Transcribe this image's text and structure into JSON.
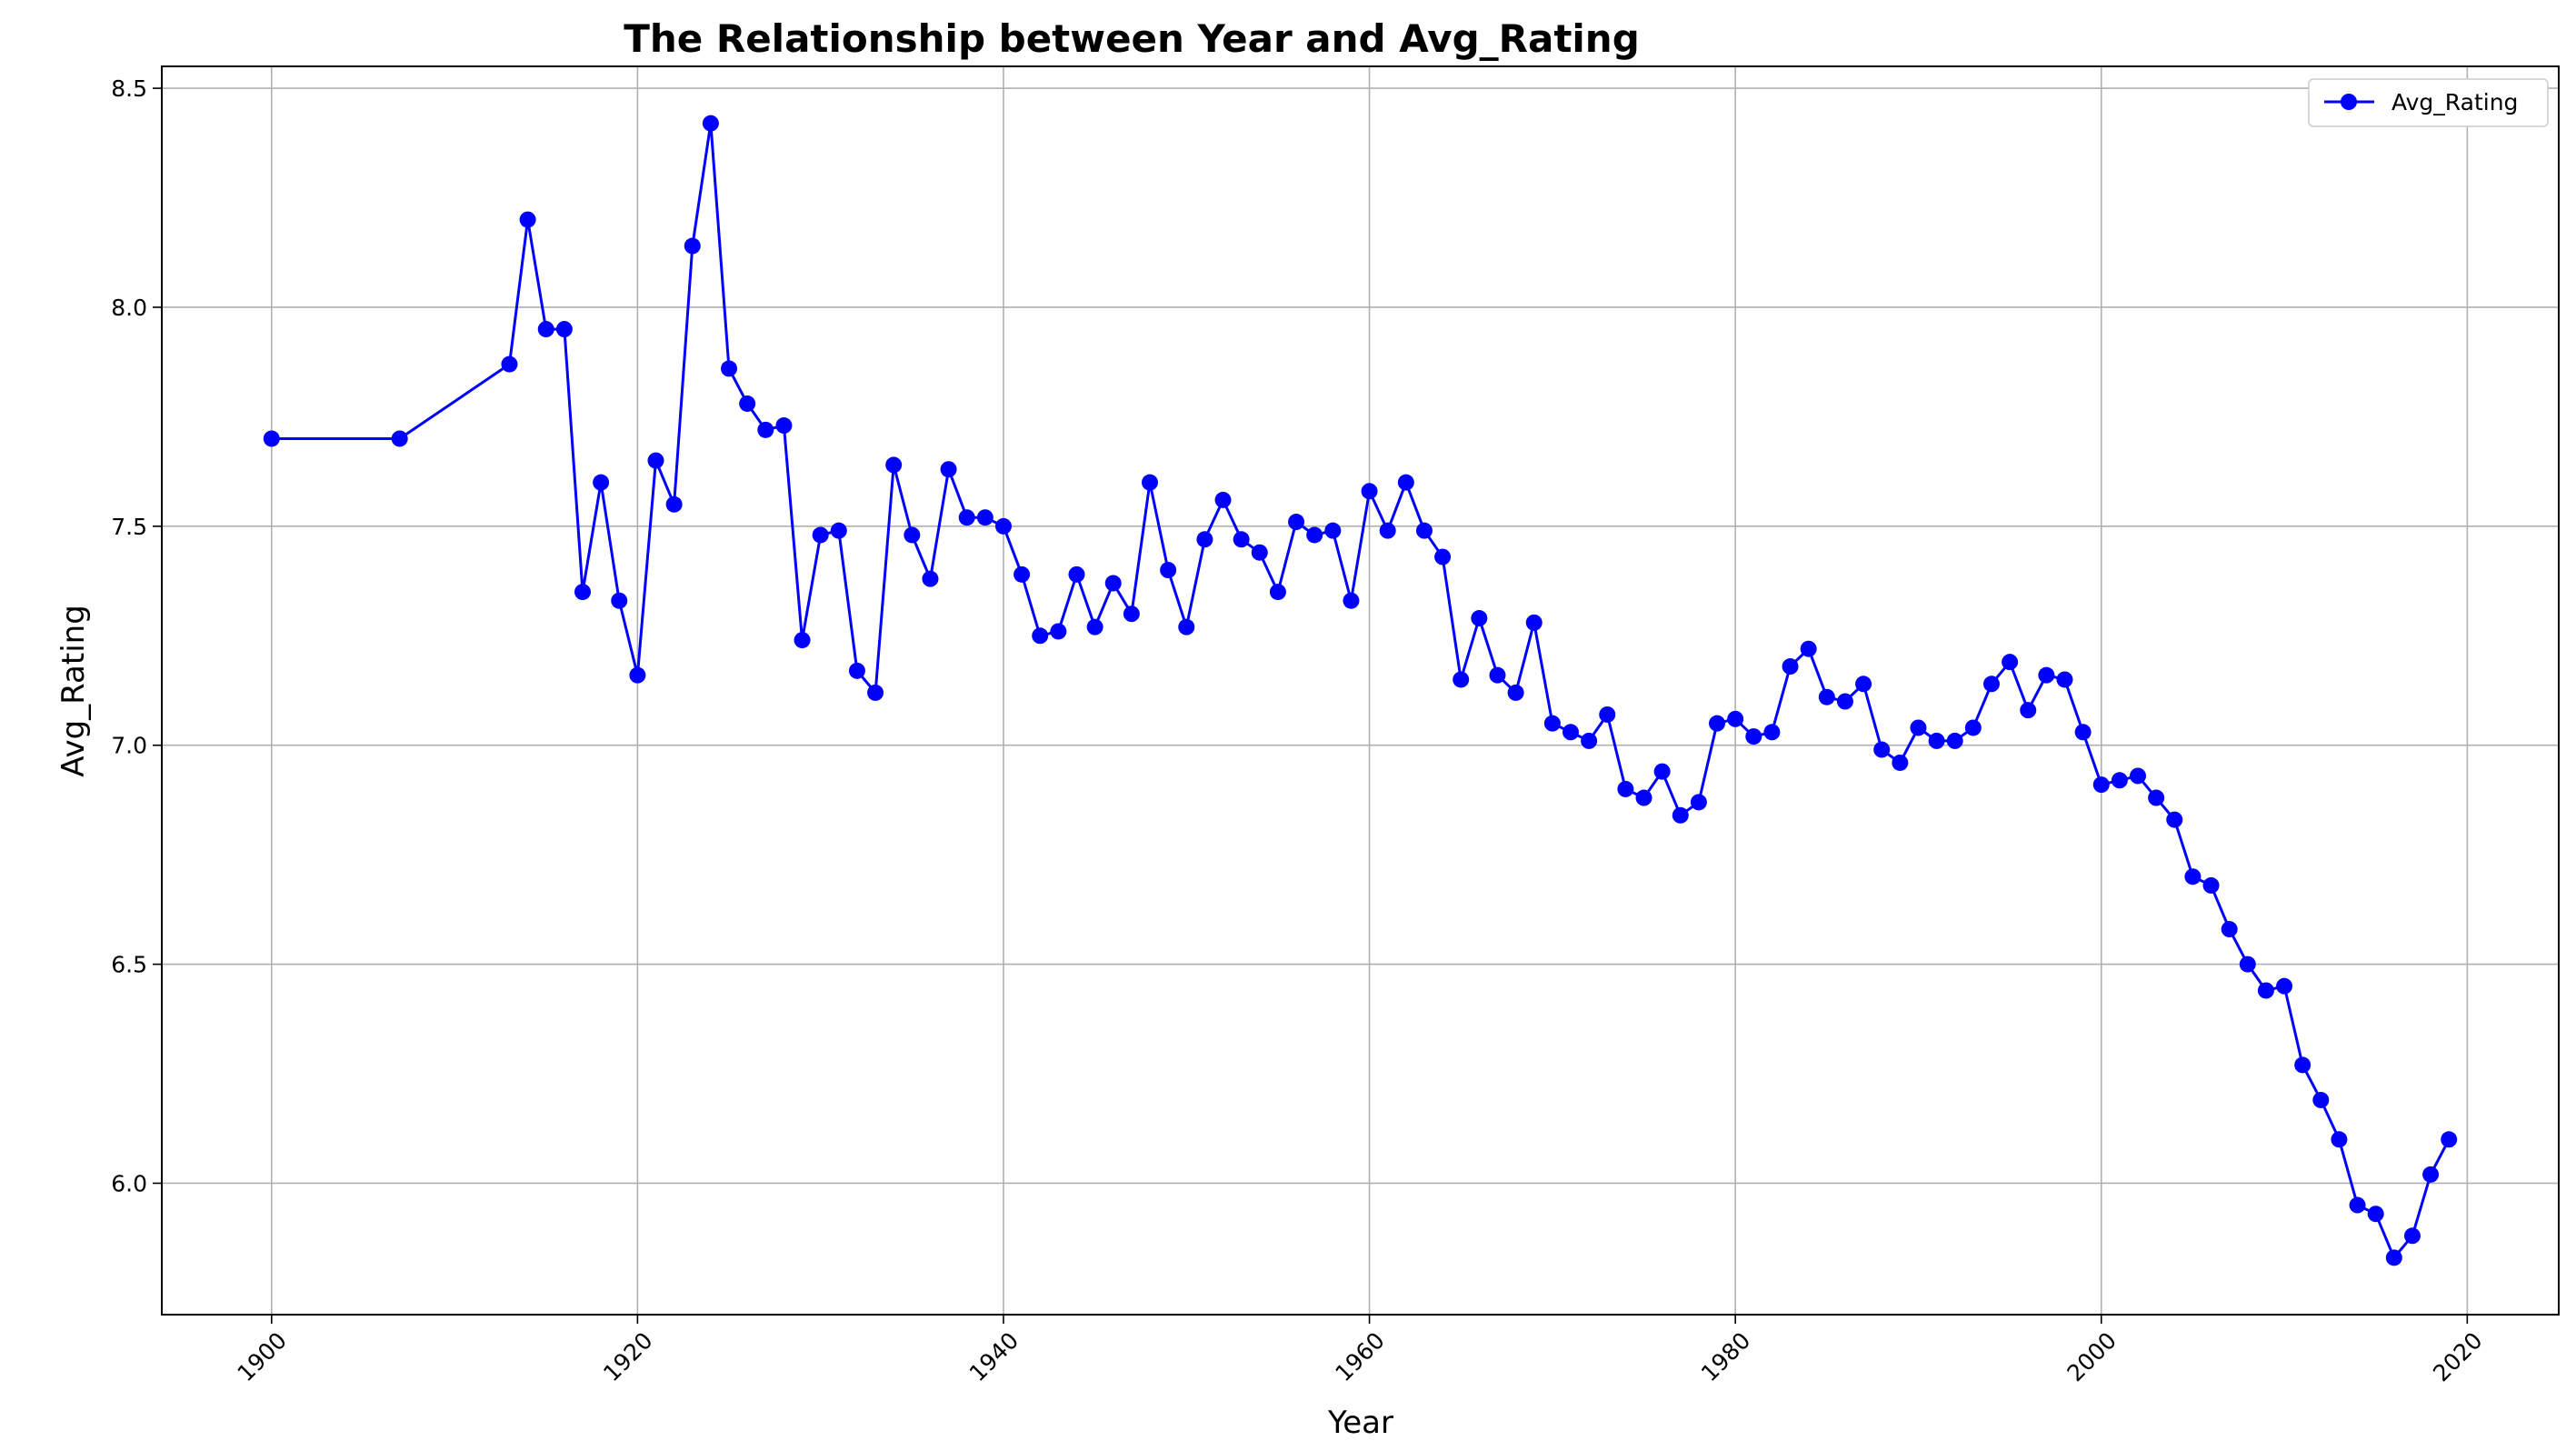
{
  "chart_data": {
    "type": "line",
    "title": "The Relationship between Year and Avg_Rating",
    "xlabel": "Year",
    "ylabel": "Avg_Rating",
    "xlim": [
      1894,
      2025
    ],
    "ylim": [
      5.7,
      8.55
    ],
    "xticks": [
      1900,
      1920,
      1940,
      1960,
      1980,
      2000,
      2020
    ],
    "yticks": [
      "6.0",
      "6.5",
      "7.0",
      "7.5",
      "8.0",
      "8.5"
    ],
    "grid": true,
    "legend_position": "top-right",
    "color": "#0000ff",
    "series": [
      {
        "name": "Avg_Rating",
        "x": [
          1900,
          1907,
          1913,
          1914,
          1915,
          1916,
          1917,
          1918,
          1919,
          1920,
          1921,
          1922,
          1923,
          1924,
          1925,
          1926,
          1927,
          1928,
          1929,
          1930,
          1931,
          1932,
          1933,
          1934,
          1935,
          1936,
          1937,
          1938,
          1939,
          1940,
          1941,
          1942,
          1943,
          1944,
          1945,
          1946,
          1947,
          1948,
          1949,
          1950,
          1951,
          1952,
          1953,
          1954,
          1955,
          1956,
          1957,
          1958,
          1959,
          1960,
          1961,
          1962,
          1963,
          1964,
          1965,
          1966,
          1967,
          1968,
          1969,
          1970,
          1971,
          1972,
          1973,
          1974,
          1975,
          1976,
          1977,
          1978,
          1979,
          1980,
          1981,
          1982,
          1983,
          1984,
          1985,
          1986,
          1987,
          1988,
          1989,
          1990,
          1991,
          1992,
          1993,
          1994,
          1995,
          1996,
          1997,
          1998,
          1999,
          2000,
          2001,
          2002,
          2003,
          2004,
          2005,
          2006,
          2007,
          2008,
          2009,
          2010,
          2011,
          2012,
          2013,
          2014,
          2015,
          2016,
          2017,
          2018,
          2019
        ],
        "values": [
          7.7,
          7.7,
          7.87,
          8.2,
          7.95,
          7.95,
          7.35,
          7.6,
          7.33,
          7.16,
          7.65,
          7.55,
          8.14,
          8.42,
          7.86,
          7.78,
          7.72,
          7.73,
          7.24,
          7.48,
          7.49,
          7.17,
          7.12,
          7.64,
          7.48,
          7.38,
          7.63,
          7.52,
          7.52,
          7.5,
          7.39,
          7.25,
          7.26,
          7.39,
          7.27,
          7.37,
          7.3,
          7.6,
          7.4,
          7.27,
          7.47,
          7.56,
          7.47,
          7.44,
          7.35,
          7.51,
          7.48,
          7.49,
          7.33,
          7.58,
          7.49,
          7.6,
          7.49,
          7.43,
          7.15,
          7.29,
          7.16,
          7.12,
          7.28,
          7.05,
          7.03,
          7.01,
          7.07,
          6.9,
          6.88,
          6.94,
          6.84,
          6.87,
          7.05,
          7.06,
          7.02,
          7.03,
          7.18,
          7.22,
          7.11,
          7.1,
          7.14,
          6.99,
          6.96,
          7.04,
          7.01,
          7.01,
          7.04,
          7.14,
          7.19,
          7.08,
          7.16,
          7.15,
          7.03,
          6.91,
          6.92,
          6.93,
          6.88,
          6.83,
          6.7,
          6.68,
          6.58,
          6.5,
          6.44,
          6.45,
          6.27,
          6.19,
          6.1,
          5.95,
          5.93,
          5.83,
          5.88,
          6.02,
          6.1
        ]
      }
    ]
  }
}
